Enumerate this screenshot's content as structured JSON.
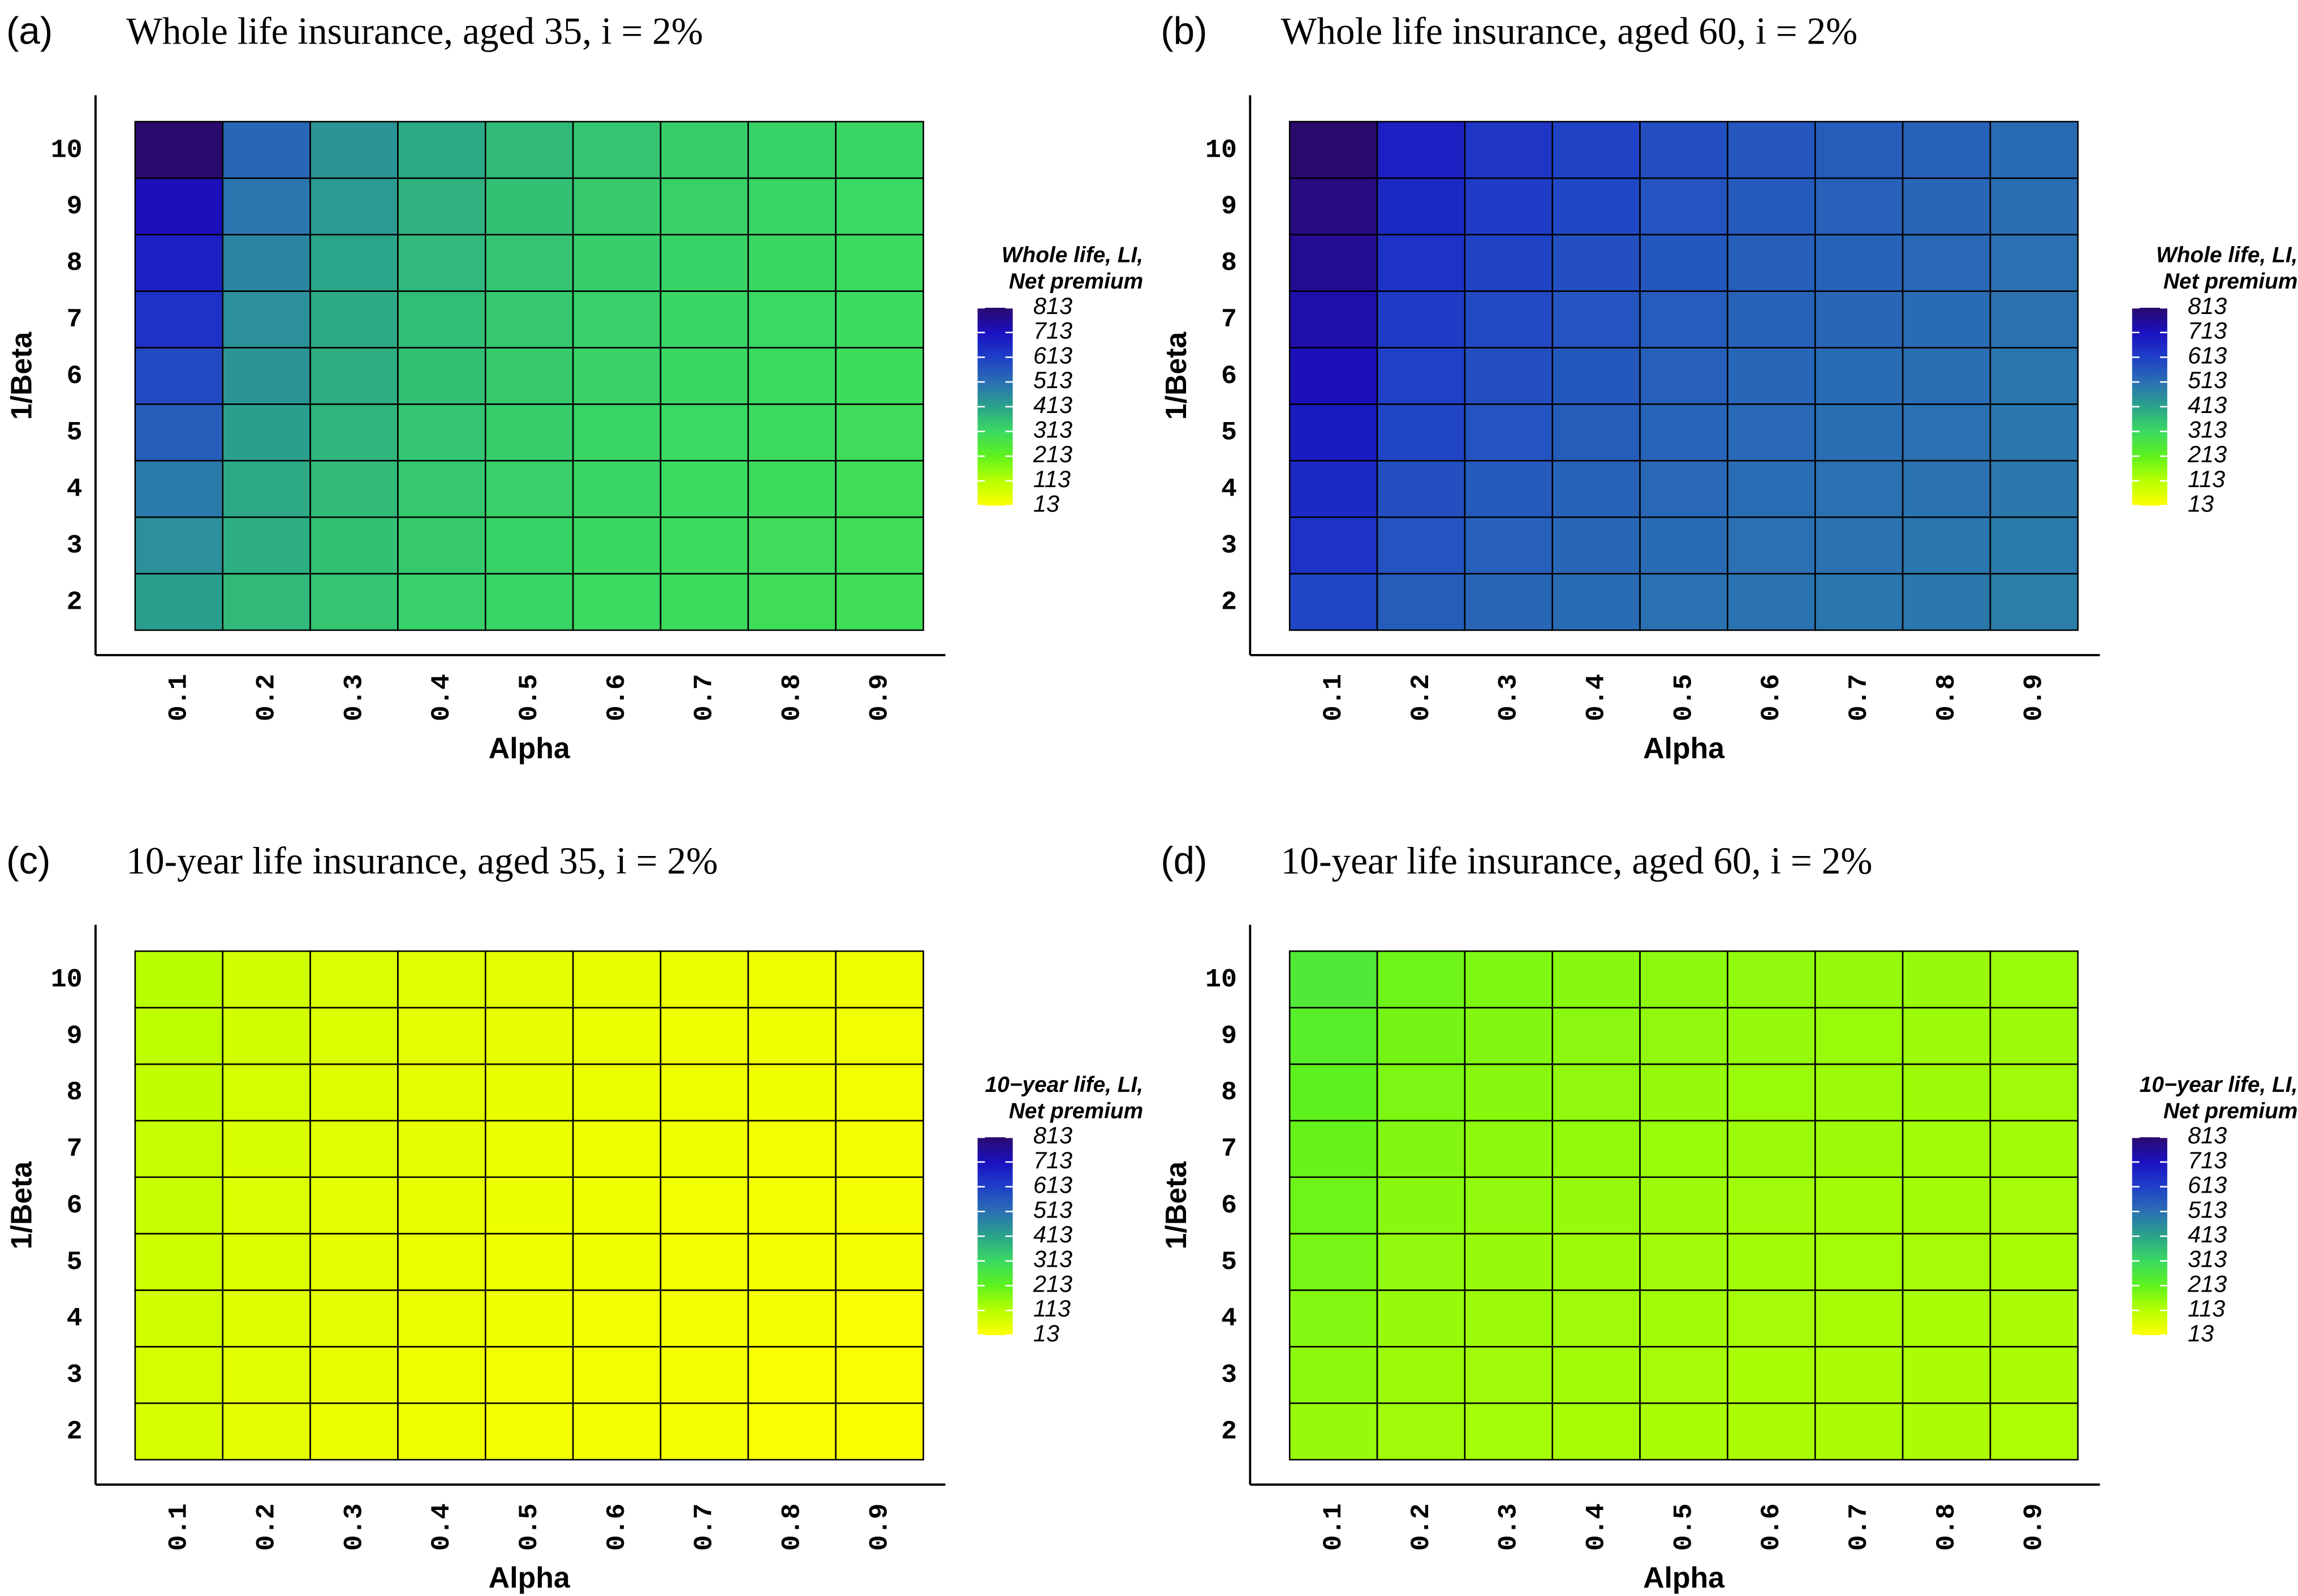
{
  "chart_data": [
    {
      "type": "heatmap",
      "panel": "(a)",
      "title": "Whole life insurance, aged 35, i = 2%",
      "x_label": "Alpha",
      "y_label": "1/Beta",
      "x": [
        0.1,
        0.2,
        0.3,
        0.4,
        0.5,
        0.6,
        0.7,
        0.8,
        0.9
      ],
      "y": [
        2,
        3,
        4,
        5,
        6,
        7,
        8,
        9,
        10
      ],
      "values": [
        [
          420,
          370,
          350,
          330,
          320,
          310,
          305,
          300,
          295
        ],
        [
          450,
          390,
          360,
          340,
          325,
          315,
          308,
          302,
          298
        ],
        [
          490,
          400,
          370,
          345,
          330,
          318,
          310,
          305,
          300
        ],
        [
          550,
          420,
          380,
          350,
          335,
          322,
          313,
          307,
          302
        ],
        [
          590,
          440,
          390,
          360,
          340,
          326,
          316,
          310,
          305
        ],
        [
          640,
          450,
          400,
          365,
          345,
          330,
          320,
          313,
          308
        ],
        [
          680,
          470,
          410,
          375,
          350,
          335,
          324,
          316,
          310
        ],
        [
          720,
          500,
          430,
          385,
          360,
          340,
          328,
          320,
          313
        ],
        [
          813,
          530,
          440,
          400,
          370,
          350,
          335,
          325,
          318
        ]
      ],
      "colorbar_title": [
        "Whole life, LI,",
        "Net premium"
      ],
      "color_lim": [
        13,
        813
      ],
      "color_ticks": [
        13,
        113,
        213,
        313,
        413,
        513,
        613,
        713,
        813
      ],
      "colormap": [
        "#ffff00",
        "#b8ff00",
        "#5ef21d",
        "#3ad962",
        "#2ba38a",
        "#2a6fb3",
        "#1f3fc8",
        "#1a10c0",
        "#2b0a6e"
      ]
    },
    {
      "type": "heatmap",
      "panel": "(b)",
      "title": "Whole life insurance, aged 60, i = 2%",
      "x_label": "Alpha",
      "y_label": "1/Beta",
      "x": [
        0.1,
        0.2,
        0.3,
        0.4,
        0.5,
        0.6,
        0.7,
        0.8,
        0.9
      ],
      "y": [
        2,
        3,
        4,
        5,
        6,
        7,
        8,
        9,
        10
      ],
      "values": [
        [
          600,
          550,
          530,
          520,
          510,
          505,
          500,
          495,
          485
        ],
        [
          640,
          570,
          545,
          530,
          520,
          512,
          505,
          500,
          490
        ],
        [
          660,
          580,
          555,
          540,
          528,
          518,
          510,
          505,
          495
        ],
        [
          690,
          600,
          570,
          550,
          535,
          525,
          516,
          510,
          500
        ],
        [
          720,
          610,
          580,
          560,
          545,
          532,
          522,
          515,
          500
        ],
        [
          740,
          620,
          590,
          570,
          552,
          540,
          530,
          520,
          505
        ],
        [
          770,
          640,
          605,
          580,
          560,
          548,
          536,
          525,
          510
        ],
        [
          790,
          660,
          620,
          595,
          570,
          555,
          542,
          530,
          515
        ],
        [
          813,
          680,
          635,
          605,
          580,
          565,
          550,
          538,
          520
        ]
      ],
      "colorbar_title": [
        "Whole life, LI,",
        "Net premium"
      ],
      "color_lim": [
        13,
        813
      ],
      "color_ticks": [
        13,
        113,
        213,
        313,
        413,
        513,
        613,
        713,
        813
      ],
      "colormap": [
        "#ffff00",
        "#b8ff00",
        "#5ef21d",
        "#3ad962",
        "#2ba38a",
        "#2a6fb3",
        "#1f3fc8",
        "#1a10c0",
        "#2b0a6e"
      ]
    },
    {
      "type": "heatmap",
      "panel": "(c)",
      "title": "10-year life insurance, aged 35, i = 2%",
      "x_label": "Alpha",
      "y_label": "1/Beta",
      "x": [
        0.1,
        0.2,
        0.3,
        0.4,
        0.5,
        0.6,
        0.7,
        0.8,
        0.9
      ],
      "y": [
        2,
        3,
        4,
        5,
        6,
        7,
        8,
        9,
        10
      ],
      "values": [
        [
          70,
          50,
          40,
          35,
          30,
          28,
          25,
          22,
          20
        ],
        [
          75,
          55,
          45,
          38,
          33,
          30,
          27,
          24,
          22
        ],
        [
          80,
          58,
          48,
          40,
          35,
          32,
          29,
          26,
          24
        ],
        [
          85,
          62,
          50,
          43,
          37,
          34,
          31,
          28,
          25
        ],
        [
          90,
          65,
          53,
          45,
          40,
          36,
          33,
          30,
          27
        ],
        [
          95,
          68,
          56,
          48,
          42,
          38,
          35,
          32,
          29
        ],
        [
          100,
          72,
          60,
          50,
          45,
          40,
          37,
          34,
          31
        ],
        [
          105,
          76,
          63,
          53,
          47,
          43,
          39,
          36,
          33
        ],
        [
          110,
          80,
          66,
          56,
          50,
          45,
          41,
          38,
          35
        ]
      ],
      "colorbar_title": [
        "10−year life, LI,",
        "Net premium"
      ],
      "color_lim": [
        13,
        813
      ],
      "color_ticks": [
        13,
        113,
        213,
        313,
        413,
        513,
        613,
        713,
        813
      ],
      "colormap": [
        "#ffff00",
        "#b8ff00",
        "#5ef21d",
        "#3ad962",
        "#2ba38a",
        "#2a6fb3",
        "#1f3fc8",
        "#1a10c0",
        "#2b0a6e"
      ]
    },
    {
      "type": "heatmap",
      "panel": "(d)",
      "title": "10-year life insurance, aged 60, i = 2%",
      "x_label": "Alpha",
      "y_label": "1/Beta",
      "x": [
        0.1,
        0.2,
        0.3,
        0.4,
        0.5,
        0.6,
        0.7,
        0.8,
        0.9
      ],
      "y": [
        2,
        3,
        4,
        5,
        6,
        7,
        8,
        9,
        10
      ],
      "values": [
        [
          150,
          140,
          135,
          132,
          130,
          128,
          127,
          126,
          125
        ],
        [
          160,
          145,
          140,
          136,
          133,
          131,
          129,
          128,
          127
        ],
        [
          170,
          150,
          144,
          140,
          136,
          134,
          132,
          130,
          129
        ],
        [
          185,
          158,
          150,
          145,
          140,
          137,
          135,
          133,
          131
        ],
        [
          195,
          165,
          155,
          150,
          145,
          141,
          138,
          136,
          134
        ],
        [
          205,
          172,
          160,
          154,
          148,
          145,
          142,
          139,
          137
        ],
        [
          215,
          180,
          166,
          158,
          152,
          148,
          145,
          142,
          140
        ],
        [
          230,
          188,
          172,
          163,
          157,
          152,
          148,
          145,
          143
        ],
        [
          250,
          195,
          178,
          168,
          161,
          156,
          152,
          149,
          146
        ]
      ],
      "colorbar_title": [
        "10−year life, LI,",
        "Net premium"
      ],
      "color_lim": [
        13,
        813
      ],
      "color_ticks": [
        13,
        113,
        213,
        313,
        413,
        513,
        613,
        713,
        813
      ],
      "colormap": [
        "#ffff00",
        "#b8ff00",
        "#5ef21d",
        "#3ad962",
        "#2ba38a",
        "#2a6fb3",
        "#1f3fc8",
        "#1a10c0",
        "#2b0a6e"
      ]
    }
  ]
}
